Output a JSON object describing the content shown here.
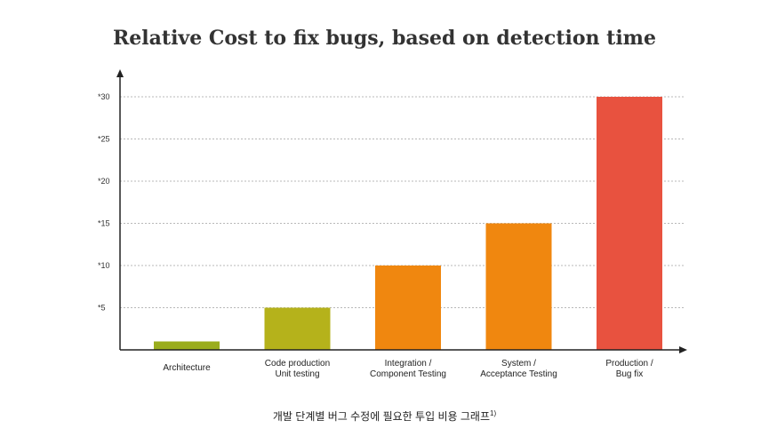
{
  "chart_data": {
    "type": "bar",
    "title": "Relative Cost to fix bugs, based on detection time",
    "categories": [
      [
        "Architecture"
      ],
      [
        "Code production",
        "Unit testing"
      ],
      [
        "Integration /",
        "Component Testing"
      ],
      [
        "System /",
        "Acceptance Testing"
      ],
      [
        "Production /",
        "Bug fix"
      ]
    ],
    "values": [
      1,
      5,
      10,
      15,
      30
    ],
    "bar_colors": [
      "#9aad1d",
      "#b5b21b",
      "#f0870f",
      "#f0870f",
      "#e8523f"
    ],
    "y_ticks": [
      5,
      10,
      15,
      20,
      25,
      30
    ],
    "y_tick_labels": [
      "*5",
      "*10",
      "*15",
      "*20",
      "*25",
      "*30"
    ],
    "ylim": [
      0,
      30
    ],
    "grid": "dotted horizontal",
    "xlabel": "",
    "ylabel": ""
  },
  "caption": {
    "text": "개발 단계별 버그 수정에 필요한 투입 비용 그래프",
    "footnote": "1)"
  }
}
